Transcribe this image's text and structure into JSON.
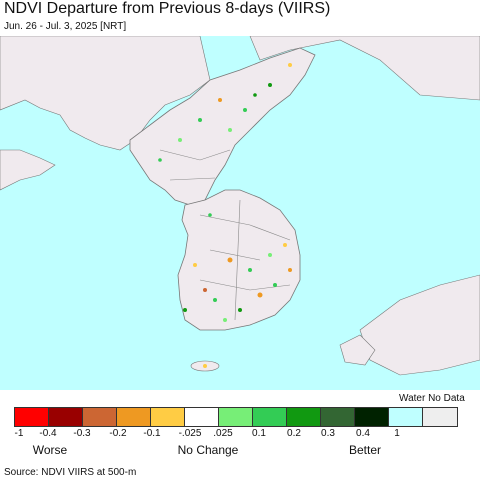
{
  "header": {
    "title": "NDVI Departure from Previous 8-days (VIIRS)",
    "subtitle": "Jun. 26 - Jul. 3, 2025 [NRT]"
  },
  "map": {
    "colors": {
      "sea": "#bfffff",
      "land": "#f0eaee",
      "border": "#888888"
    }
  },
  "legend": {
    "water_no_data_label": "Water No Data",
    "swatches": [
      {
        "color": "#ff0000"
      },
      {
        "color": "#990000"
      },
      {
        "color": "#cc6633"
      },
      {
        "color": "#ee9922"
      },
      {
        "color": "#ffcc44"
      },
      {
        "color": "#ffffff"
      },
      {
        "color": "#77ee77"
      },
      {
        "color": "#33cc55"
      },
      {
        "color": "#119911"
      },
      {
        "color": "#336633"
      },
      {
        "color": "#002200"
      },
      {
        "color": "#bfffff"
      },
      {
        "color": "#eeeeee"
      }
    ],
    "ticks": [
      "-1",
      "-0.4",
      "-0.3",
      "-0.2",
      "-0.1",
      "-.025",
      ".025",
      "0.1",
      "0.2",
      "0.3",
      "0.4",
      "1"
    ],
    "categories": [
      "Worse",
      "No Change",
      "Better"
    ]
  },
  "footer": {
    "source": "Source: NDVI VIIRS at 500-m"
  }
}
